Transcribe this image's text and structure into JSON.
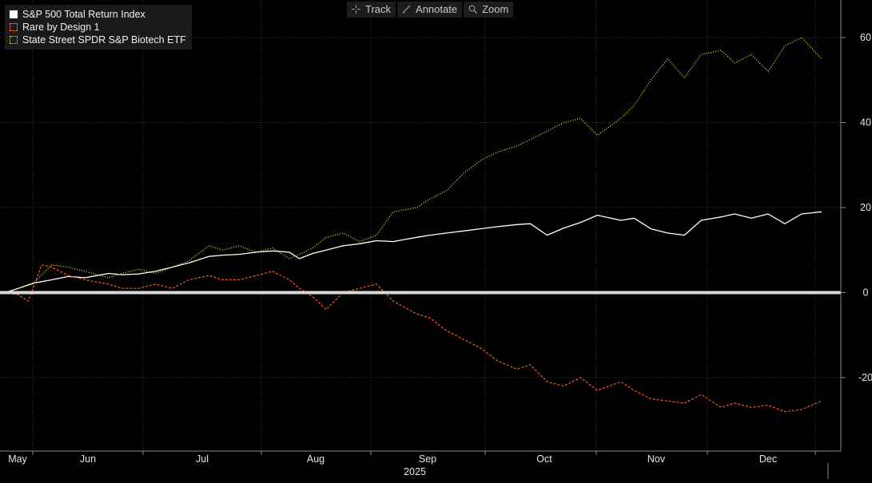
{
  "toolbar": {
    "track_label": "Track",
    "annotate_label": "Annotate",
    "zoom_label": "Zoom"
  },
  "legend": [
    {
      "label": "S&P 500 Total Return Index",
      "color": "#ffffff",
      "style": "solid"
    },
    {
      "label": "Rare by Design 1",
      "color": "#ff5a1f",
      "style": "dashed"
    },
    {
      "label": "State Street SPDR S&P Biotech ETF",
      "color": "#e2e82c",
      "style": "dotted"
    }
  ],
  "chart_data": {
    "type": "line",
    "x_axis": {
      "months": [
        "May",
        "Jun",
        "Jul",
        "Aug",
        "Sep",
        "Oct",
        "Nov",
        "Dec"
      ],
      "year_label": "2025",
      "range": [
        "2025-05-01",
        "2025-12-31"
      ]
    },
    "y_axis": {
      "ticks": [
        60,
        40,
        20,
        0,
        -20
      ],
      "tick_labels": [
        "60",
        "40",
        "20",
        "0",
        "-20"
      ],
      "ylim": [
        -36.5,
        69
      ],
      "position": "right",
      "zero_line": true
    },
    "grid": true,
    "legend_position": "top-left",
    "series": [
      {
        "name": "S&P 500 Total Return Index",
        "color": "#ffffff",
        "style": "solid",
        "points": [
          [
            "2025-05-01",
            0
          ],
          [
            "2025-05-05",
            1
          ],
          [
            "2025-05-10",
            2.3
          ],
          [
            "2025-05-15",
            3
          ],
          [
            "2025-05-20",
            3.8
          ],
          [
            "2025-05-25",
            3.5
          ],
          [
            "2025-06-01",
            4.5
          ],
          [
            "2025-06-05",
            4.2
          ],
          [
            "2025-06-10",
            4.4
          ],
          [
            "2025-06-15",
            5
          ],
          [
            "2025-06-20",
            6
          ],
          [
            "2025-06-25",
            7
          ],
          [
            "2025-07-01",
            8.5
          ],
          [
            "2025-07-05",
            8.8
          ],
          [
            "2025-07-10",
            9
          ],
          [
            "2025-07-15",
            9.5
          ],
          [
            "2025-07-20",
            9.8
          ],
          [
            "2025-07-25",
            9.5
          ],
          [
            "2025-07-28",
            8
          ],
          [
            "2025-08-01",
            9.2
          ],
          [
            "2025-08-05",
            10
          ],
          [
            "2025-08-10",
            11
          ],
          [
            "2025-08-15",
            11.5
          ],
          [
            "2025-08-20",
            12.2
          ],
          [
            "2025-08-25",
            12
          ],
          [
            "2025-09-01",
            13
          ],
          [
            "2025-09-05",
            13.5
          ],
          [
            "2025-09-10",
            14
          ],
          [
            "2025-09-15",
            14.5
          ],
          [
            "2025-09-20",
            15
          ],
          [
            "2025-09-25",
            15.5
          ],
          [
            "2025-10-01",
            16
          ],
          [
            "2025-10-05",
            16.2
          ],
          [
            "2025-10-10",
            13.5
          ],
          [
            "2025-10-15",
            15.2
          ],
          [
            "2025-10-20",
            16.5
          ],
          [
            "2025-10-25",
            18.2
          ],
          [
            "2025-11-01",
            17
          ],
          [
            "2025-11-05",
            17.5
          ],
          [
            "2025-11-10",
            15
          ],
          [
            "2025-11-15",
            14
          ],
          [
            "2025-11-20",
            13.5
          ],
          [
            "2025-11-25",
            17
          ],
          [
            "2025-12-01",
            17.8
          ],
          [
            "2025-12-05",
            18.5
          ],
          [
            "2025-12-10",
            17.5
          ],
          [
            "2025-12-15",
            18.5
          ],
          [
            "2025-12-20",
            16.2
          ],
          [
            "2025-12-25",
            18.5
          ],
          [
            "2025-12-31",
            19
          ]
        ]
      },
      {
        "name": "Rare by Design 1",
        "color": "#ff5a1f",
        "style": "dashed",
        "points": [
          [
            "2025-05-01",
            0
          ],
          [
            "2025-05-05",
            -0.5
          ],
          [
            "2025-05-08",
            -2
          ],
          [
            "2025-05-12",
            6.5
          ],
          [
            "2025-05-15",
            6
          ],
          [
            "2025-05-20",
            4
          ],
          [
            "2025-05-25",
            3
          ],
          [
            "2025-06-01",
            2
          ],
          [
            "2025-06-05",
            1
          ],
          [
            "2025-06-10",
            1
          ],
          [
            "2025-06-15",
            2
          ],
          [
            "2025-06-20",
            1
          ],
          [
            "2025-06-25",
            3
          ],
          [
            "2025-07-01",
            4
          ],
          [
            "2025-07-05",
            3
          ],
          [
            "2025-07-10",
            3
          ],
          [
            "2025-07-15",
            4
          ],
          [
            "2025-07-20",
            5
          ],
          [
            "2025-07-25",
            3
          ],
          [
            "2025-07-28",
            1
          ],
          [
            "2025-08-01",
            -1
          ],
          [
            "2025-08-05",
            -4
          ],
          [
            "2025-08-10",
            0
          ],
          [
            "2025-08-15",
            1
          ],
          [
            "2025-08-20",
            2
          ],
          [
            "2025-08-25",
            -2
          ],
          [
            "2025-09-01",
            -5
          ],
          [
            "2025-09-05",
            -6
          ],
          [
            "2025-09-10",
            -9
          ],
          [
            "2025-09-15",
            -11
          ],
          [
            "2025-09-20",
            -13
          ],
          [
            "2025-09-25",
            -16
          ],
          [
            "2025-10-01",
            -18
          ],
          [
            "2025-10-05",
            -17
          ],
          [
            "2025-10-10",
            -21
          ],
          [
            "2025-10-15",
            -22
          ],
          [
            "2025-10-20",
            -20
          ],
          [
            "2025-10-25",
            -23
          ],
          [
            "2025-11-01",
            -21
          ],
          [
            "2025-11-05",
            -23
          ],
          [
            "2025-11-10",
            -25
          ],
          [
            "2025-11-15",
            -25.5
          ],
          [
            "2025-11-20",
            -26
          ],
          [
            "2025-11-25",
            -24
          ],
          [
            "2025-12-01",
            -27
          ],
          [
            "2025-12-05",
            -26
          ],
          [
            "2025-12-10",
            -27
          ],
          [
            "2025-12-15",
            -26.5
          ],
          [
            "2025-12-20",
            -28
          ],
          [
            "2025-12-25",
            -27.5
          ],
          [
            "2025-12-31",
            -25.5
          ]
        ]
      },
      {
        "name": "State Street SPDR S&P Biotech ETF",
        "color": "#e2e82c",
        "style": "dotted",
        "points": [
          [
            "2025-05-01",
            0
          ],
          [
            "2025-05-05",
            1
          ],
          [
            "2025-05-10",
            2.5
          ],
          [
            "2025-05-15",
            6.5
          ],
          [
            "2025-05-20",
            6
          ],
          [
            "2025-05-25",
            5
          ],
          [
            "2025-06-01",
            3.5
          ],
          [
            "2025-06-05",
            4.5
          ],
          [
            "2025-06-10",
            5.5
          ],
          [
            "2025-06-15",
            4.5
          ],
          [
            "2025-06-20",
            6
          ],
          [
            "2025-06-25",
            7.5
          ],
          [
            "2025-07-01",
            11
          ],
          [
            "2025-07-05",
            10
          ],
          [
            "2025-07-10",
            11
          ],
          [
            "2025-07-15",
            9.5
          ],
          [
            "2025-07-20",
            10.5
          ],
          [
            "2025-07-25",
            8
          ],
          [
            "2025-07-28",
            9
          ],
          [
            "2025-08-01",
            10.5
          ],
          [
            "2025-08-05",
            13
          ],
          [
            "2025-08-10",
            14
          ],
          [
            "2025-08-15",
            12
          ],
          [
            "2025-08-20",
            13.5
          ],
          [
            "2025-08-25",
            19
          ],
          [
            "2025-09-01",
            20
          ],
          [
            "2025-09-05",
            22
          ],
          [
            "2025-09-10",
            24
          ],
          [
            "2025-09-15",
            28
          ],
          [
            "2025-09-20",
            31
          ],
          [
            "2025-09-25",
            33
          ],
          [
            "2025-10-01",
            34.5
          ],
          [
            "2025-10-05",
            36
          ],
          [
            "2025-10-10",
            38
          ],
          [
            "2025-10-15",
            40
          ],
          [
            "2025-10-20",
            41
          ],
          [
            "2025-10-25",
            37
          ],
          [
            "2025-11-01",
            41
          ],
          [
            "2025-11-05",
            44
          ],
          [
            "2025-11-10",
            50
          ],
          [
            "2025-11-15",
            55
          ],
          [
            "2025-11-20",
            50.5
          ],
          [
            "2025-11-25",
            56
          ],
          [
            "2025-12-01",
            57
          ],
          [
            "2025-12-05",
            54
          ],
          [
            "2025-12-10",
            56
          ],
          [
            "2025-12-15",
            52
          ],
          [
            "2025-12-20",
            58
          ],
          [
            "2025-12-25",
            60
          ],
          [
            "2025-12-31",
            55
          ]
        ]
      }
    ]
  }
}
